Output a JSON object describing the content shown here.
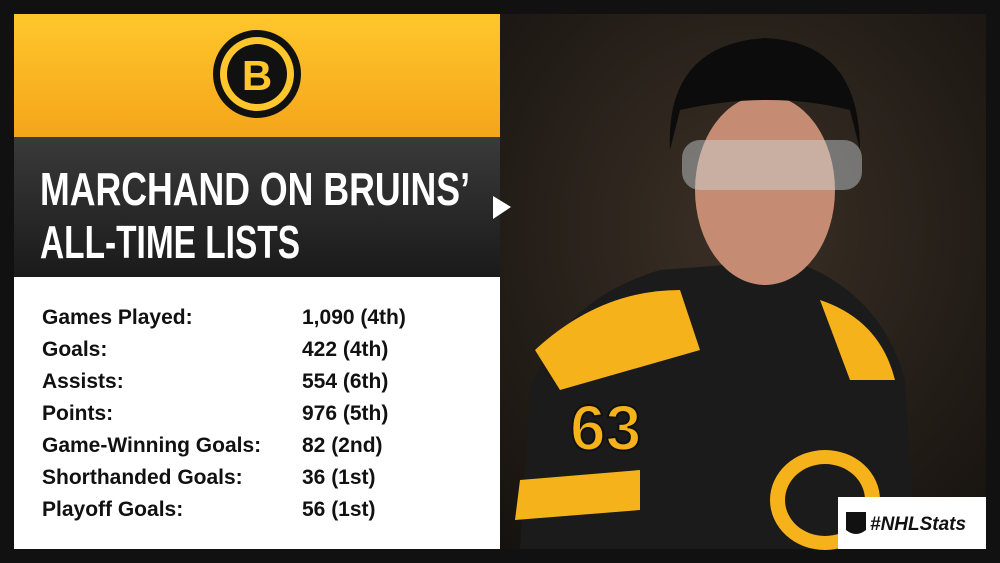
{
  "header": {
    "logo_letter": "B",
    "title_line1": "MARCHAND ON BRUINS’",
    "title_line2": "ALL-TIME LISTS"
  },
  "stats": {
    "rows": [
      [
        "Games Played:",
        "1,090 (4th)"
      ],
      [
        "Goals:",
        "422 (4th)"
      ],
      [
        "Assists:",
        "554 (6th)"
      ],
      [
        "Points:",
        "976 (5th)"
      ],
      [
        "Game-Winning Goals:",
        "82 (2nd)"
      ],
      [
        "Shorthanded Goals:",
        "36 (1st)"
      ],
      [
        "Playoff Goals:",
        "56 (1st)"
      ]
    ]
  },
  "photo": {
    "jersey_number": "63"
  },
  "badge": {
    "hashtag": "#NHLStats"
  }
}
